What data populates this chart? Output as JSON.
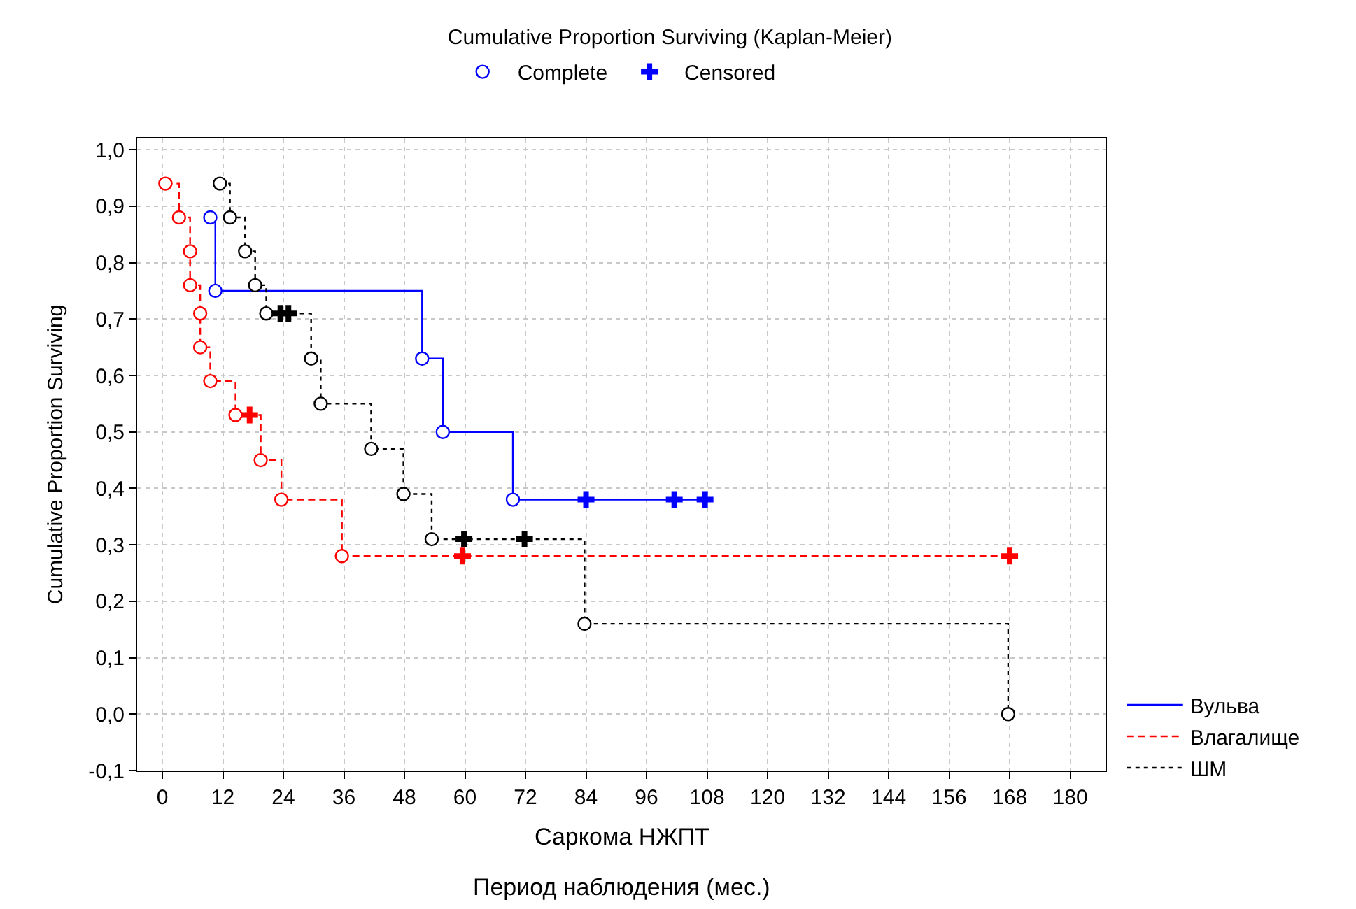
{
  "chart_data": {
    "type": "step",
    "title": "Cumulative Proportion Surviving (Kaplan-Meier)",
    "subtitle": "Саркома НЖПТ",
    "xlabel": "Период наблюдения (мес.)",
    "ylabel": "Cumulative Proportion Surviving",
    "xlim": [
      -5,
      187
    ],
    "xticks": [
      0,
      12,
      24,
      36,
      48,
      60,
      72,
      84,
      96,
      108,
      120,
      132,
      144,
      156,
      168,
      180
    ],
    "ylim": [
      -0.1,
      1.02
    ],
    "yticks": [
      {
        "value": -0.1,
        "label": "-0,1"
      },
      {
        "value": 0.0,
        "label": "0,0"
      },
      {
        "value": 0.1,
        "label": "0,1"
      },
      {
        "value": 0.2,
        "label": "0,2"
      },
      {
        "value": 0.3,
        "label": "0,3"
      },
      {
        "value": 0.4,
        "label": "0,4"
      },
      {
        "value": 0.5,
        "label": "0,5"
      },
      {
        "value": 0.6,
        "label": "0,6"
      },
      {
        "value": 0.7,
        "label": "0,7"
      },
      {
        "value": 0.8,
        "label": "0,8"
      },
      {
        "value": 0.9,
        "label": "0,9"
      },
      {
        "value": 1.0,
        "label": "1,0"
      }
    ],
    "grid": true,
    "legend": "right",
    "series": [
      {
        "name": "Вульва",
        "color": "#0000ff",
        "line_style": "solid",
        "x": [
          9.5,
          10.5,
          51.5,
          55.6,
          69.5,
          84,
          101.5,
          107.6
        ],
        "values": [
          0.88,
          0.75,
          0.63,
          0.5,
          0.38,
          0.38,
          0.38,
          0.38
        ]
      },
      {
        "name": "Влагалище",
        "color": "#ff0000",
        "line_style": "dashed",
        "x": [
          0.6,
          3.3,
          5.5,
          5.5,
          7.5,
          7.5,
          9.5,
          14.5,
          17.3,
          19.5,
          23.6,
          35.6,
          59.5,
          168
        ],
        "values": [
          0.94,
          0.88,
          0.82,
          0.76,
          0.71,
          0.65,
          0.59,
          0.53,
          0.53,
          0.45,
          0.38,
          0.28,
          0.28,
          0.28
        ]
      },
      {
        "name": "ШМ",
        "color": "#000000",
        "line_style": "dotted",
        "x": [
          11.4,
          13.4,
          16.4,
          18.4,
          20.6,
          23.4,
          25.0,
          29.5,
          31.4,
          41.4,
          47.8,
          53.4,
          59.8,
          71.8,
          83.7,
          167.7
        ],
        "values": [
          0.94,
          0.88,
          0.82,
          0.76,
          0.71,
          0.71,
          0.71,
          0.63,
          0.55,
          0.47,
          0.39,
          0.31,
          0.31,
          0.31,
          0.16,
          0.0
        ]
      },
      {
        "type": "scatter",
        "name": "Complete",
        "color": "#0000ff",
        "marker": "circle",
        "x": [
          9.5,
          10.5,
          51.5,
          55.6,
          69.5
        ],
        "values": [
          0.88,
          0.75,
          0.63,
          0.5,
          0.38
        ]
      },
      {
        "type": "scatter",
        "name": "Censored",
        "color": "#0000ff",
        "marker": "cross",
        "x": [
          84,
          101.5,
          107.6
        ],
        "values": [
          0.38,
          0.38,
          0.38
        ]
      },
      {
        "type": "scatter",
        "color": "#ff0000",
        "marker": "circle",
        "x": [
          0.6,
          3.3,
          5.5,
          5.5,
          7.5,
          7.5,
          9.5,
          14.5,
          19.5,
          23.6,
          35.6
        ],
        "values": [
          0.94,
          0.88,
          0.82,
          0.76,
          0.71,
          0.65,
          0.59,
          0.53,
          0.45,
          0.38,
          0.28
        ]
      },
      {
        "type": "scatter",
        "color": "#ff0000",
        "marker": "cross",
        "x": [
          17.3,
          59.5,
          168
        ],
        "values": [
          0.53,
          0.28,
          0.28
        ]
      },
      {
        "type": "scatter",
        "color": "#000000",
        "marker": "circle",
        "x": [
          11.4,
          13.4,
          16.4,
          18.4,
          20.6,
          29.5,
          31.4,
          41.4,
          47.8,
          53.4,
          83.7,
          167.7
        ],
        "values": [
          0.94,
          0.88,
          0.82,
          0.76,
          0.71,
          0.63,
          0.55,
          0.47,
          0.39,
          0.31,
          0.16,
          0.0
        ]
      },
      {
        "type": "scatter",
        "color": "#000000",
        "marker": "cross",
        "x": [
          23.4,
          25.0,
          59.8,
          71.8
        ],
        "values": [
          0.71,
          0.71,
          0.31,
          0.31
        ]
      }
    ]
  }
}
